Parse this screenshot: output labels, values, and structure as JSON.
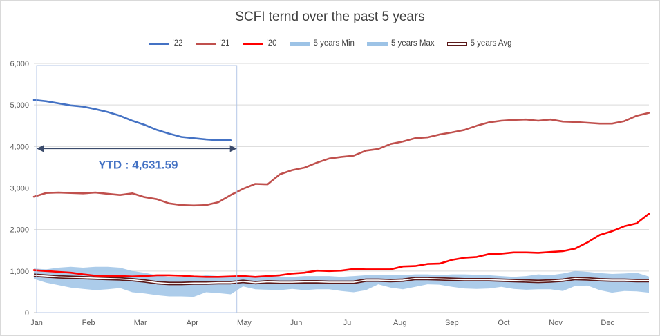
{
  "chart_data": {
    "type": "line",
    "title": "SCFI ternd over the past 5 years",
    "xlabel": "",
    "ylabel": "",
    "x_tick_labels": [
      "Jan",
      "Feb",
      "Mar",
      "Apr",
      "May",
      "Jun",
      "Jul",
      "Aug",
      "Sep",
      "Oct",
      "Nov",
      "Dec"
    ],
    "y_tick_labels": [
      "0",
      "1,000",
      "2,000",
      "3,000",
      "4,000",
      "5,000",
      "6,000"
    ],
    "ylim": [
      0,
      6000
    ],
    "xlim": [
      0,
      50
    ],
    "grid": "horizontal",
    "legend_position": "top",
    "annotation": {
      "text": "YTD : 4,631.59",
      "box_x_range": [
        0,
        16.5
      ],
      "box_y_range": [
        0,
        5950
      ],
      "arrow_y": 3950
    },
    "series": [
      {
        "name": "'22",
        "color": "#4472c4",
        "style": "line",
        "x": [
          0,
          1,
          2,
          3,
          4,
          5,
          6,
          7,
          8,
          9,
          10,
          11,
          12,
          13,
          14,
          15,
          16
        ],
        "values": [
          5120,
          5090,
          5040,
          4990,
          4960,
          4900,
          4830,
          4740,
          4620,
          4520,
          4400,
          4310,
          4230,
          4200,
          4170,
          4150,
          4150
        ]
      },
      {
        "name": "'21",
        "color": "#c0504d",
        "style": "line",
        "x": [
          0,
          1,
          2,
          3,
          4,
          5,
          6,
          7,
          8,
          9,
          10,
          11,
          12,
          13,
          14,
          15,
          16,
          17,
          18,
          19,
          20,
          21,
          22,
          23,
          24,
          25,
          26,
          27,
          28,
          29,
          30,
          31,
          32,
          33,
          34,
          35,
          36,
          37,
          38,
          39,
          40,
          41,
          42,
          43,
          44,
          45,
          46,
          47,
          48,
          49,
          50
        ],
        "values": [
          2790,
          2880,
          2890,
          2880,
          2870,
          2890,
          2860,
          2830,
          2870,
          2780,
          2730,
          2630,
          2590,
          2580,
          2590,
          2660,
          2830,
          2980,
          3100,
          3090,
          3330,
          3430,
          3490,
          3610,
          3710,
          3750,
          3780,
          3900,
          3940,
          4060,
          4120,
          4200,
          4220,
          4290,
          4340,
          4400,
          4500,
          4580,
          4620,
          4640,
          4650,
          4620,
          4650,
          4600,
          4590,
          4570,
          4550,
          4550,
          4610,
          4740,
          4810
        ]
      },
      {
        "name": "'20",
        "color": "#ff0000",
        "style": "line",
        "x": [
          0,
          1,
          2,
          3,
          4,
          5,
          6,
          7,
          8,
          9,
          10,
          11,
          12,
          13,
          14,
          15,
          16,
          17,
          18,
          19,
          20,
          21,
          22,
          23,
          24,
          25,
          26,
          27,
          28,
          29,
          30,
          31,
          32,
          33,
          34,
          35,
          36,
          37,
          38,
          39,
          40,
          41,
          42,
          43,
          44,
          45,
          46,
          47,
          48,
          49,
          50
        ],
        "values": [
          1020,
          1000,
          980,
          960,
          920,
          890,
          880,
          880,
          870,
          880,
          900,
          900,
          890,
          870,
          860,
          860,
          870,
          880,
          860,
          880,
          900,
          940,
          960,
          1010,
          1000,
          1010,
          1050,
          1040,
          1040,
          1040,
          1110,
          1120,
          1170,
          1180,
          1270,
          1320,
          1340,
          1410,
          1420,
          1450,
          1450,
          1440,
          1460,
          1480,
          1540,
          1690,
          1870,
          1960,
          2080,
          2150,
          2380
        ]
      },
      {
        "name": "5 years Min",
        "color": "#9dc3e6",
        "style": "band-lower",
        "x": [
          0,
          1,
          2,
          3,
          4,
          5,
          6,
          7,
          8,
          9,
          10,
          11,
          12,
          13,
          14,
          15,
          16,
          17,
          18,
          19,
          20,
          21,
          22,
          23,
          24,
          25,
          26,
          27,
          28,
          29,
          30,
          31,
          32,
          33,
          34,
          35,
          36,
          37,
          38,
          39,
          40,
          41,
          42,
          43,
          44,
          45,
          46,
          47,
          48,
          49,
          50
        ],
        "values": [
          810,
          720,
          660,
          600,
          570,
          540,
          560,
          590,
          490,
          460,
          420,
          390,
          390,
          380,
          490,
          470,
          440,
          630,
          560,
          550,
          540,
          570,
          540,
          560,
          560,
          520,
          490,
          540,
          680,
          600,
          560,
          620,
          680,
          670,
          620,
          580,
          570,
          580,
          620,
          570,
          550,
          560,
          560,
          520,
          640,
          650,
          540,
          480,
          520,
          510,
          480
        ]
      },
      {
        "name": "5 years Max",
        "color": "#9dc3e6",
        "style": "band-upper",
        "x": [
          0,
          1,
          2,
          3,
          4,
          5,
          6,
          7,
          8,
          9,
          10,
          11,
          12,
          13,
          14,
          15,
          16,
          17,
          18,
          19,
          20,
          21,
          22,
          23,
          24,
          25,
          26,
          27,
          28,
          29,
          30,
          31,
          32,
          33,
          34,
          35,
          36,
          37,
          38,
          39,
          40,
          41,
          42,
          43,
          44,
          45,
          46,
          47,
          48,
          49,
          50
        ],
        "values": [
          1060,
          1040,
          1080,
          1100,
          1080,
          1100,
          1100,
          1080,
          1000,
          960,
          900,
          860,
          860,
          850,
          900,
          880,
          880,
          900,
          880,
          880,
          870,
          860,
          880,
          880,
          880,
          860,
          880,
          900,
          900,
          900,
          900,
          920,
          920,
          900,
          920,
          920,
          910,
          900,
          880,
          860,
          880,
          920,
          900,
          940,
          1000,
          980,
          950,
          930,
          940,
          960,
          870
        ]
      },
      {
        "name": "5 years Avg",
        "color": "#5b1a1a",
        "style": "outlined-line",
        "x": [
          0,
          1,
          2,
          3,
          4,
          5,
          6,
          7,
          8,
          9,
          10,
          11,
          12,
          13,
          14,
          15,
          16,
          17,
          18,
          19,
          20,
          21,
          22,
          23,
          24,
          25,
          26,
          27,
          28,
          29,
          30,
          31,
          32,
          33,
          34,
          35,
          36,
          37,
          38,
          39,
          40,
          41,
          42,
          43,
          44,
          45,
          46,
          47,
          48,
          49,
          50
        ],
        "values": [
          900,
          880,
          860,
          850,
          840,
          830,
          820,
          810,
          790,
          760,
          720,
          700,
          700,
          710,
          710,
          720,
          720,
          750,
          720,
          740,
          730,
          730,
          740,
          740,
          730,
          730,
          730,
          780,
          780,
          770,
          780,
          820,
          820,
          810,
          800,
          790,
          790,
          790,
          780,
          770,
          760,
          750,
          760,
          780,
          820,
          810,
          790,
          780,
          780,
          770,
          770
        ]
      }
    ]
  }
}
